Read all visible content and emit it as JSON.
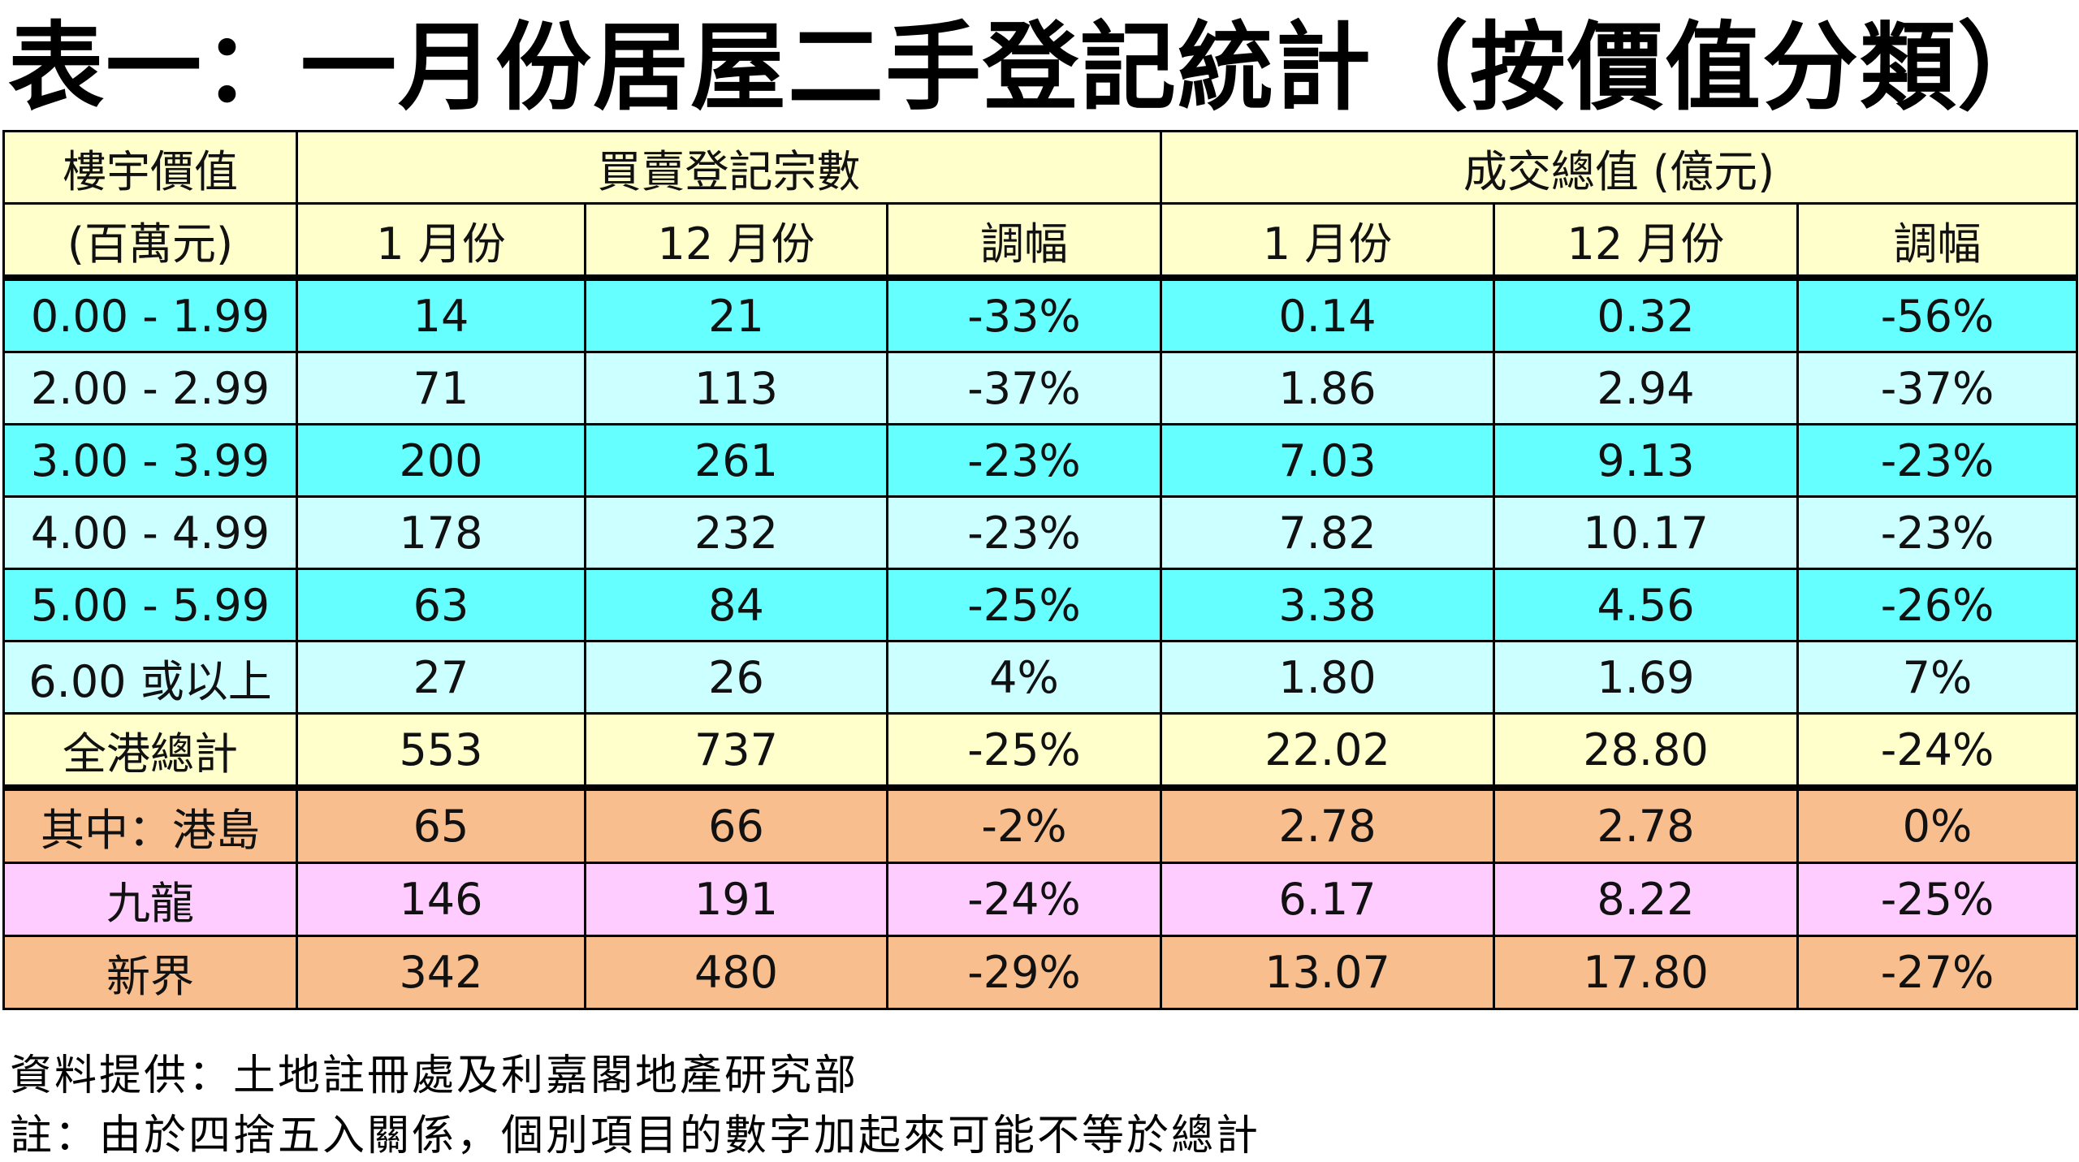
{
  "title": "表一：一月份居屋二手登記統計（按價值分類）",
  "colors": {
    "header_bg": "#ffffcc",
    "band_dark": "#66ffff",
    "band_light": "#ccffff",
    "total_bg": "#ffffcc",
    "region_orange": "#f8be8e",
    "region_pink": "#ffccff"
  },
  "header": {
    "row1": {
      "value_label": "樓宇價值",
      "registrations_label": "買賣登記宗數",
      "total_value_label": "成交總值 (億元)"
    },
    "row2": {
      "unit_label": "(百萬元)",
      "jan": "1 月份",
      "dec": "12 月份",
      "change": "調幅",
      "jan_v": "1 月份",
      "dec_v": "12 月份",
      "change_v": "調幅"
    }
  },
  "rows": [
    {
      "label": "0.00 - 1.99",
      "jan": "14",
      "dec": "21",
      "chg": "-33%",
      "jan_v": "0.14",
      "dec_v": "0.32",
      "chg_v": "-56%",
      "bg": "#66ffff"
    },
    {
      "label": "2.00 - 2.99",
      "jan": "71",
      "dec": "113",
      "chg": "-37%",
      "jan_v": "1.86",
      "dec_v": "2.94",
      "chg_v": "-37%",
      "bg": "#ccffff"
    },
    {
      "label": "3.00 - 3.99",
      "jan": "200",
      "dec": "261",
      "chg": "-23%",
      "jan_v": "7.03",
      "dec_v": "9.13",
      "chg_v": "-23%",
      "bg": "#66ffff"
    },
    {
      "label": "4.00 - 4.99",
      "jan": "178",
      "dec": "232",
      "chg": "-23%",
      "jan_v": "7.82",
      "dec_v": "10.17",
      "chg_v": "-23%",
      "bg": "#ccffff"
    },
    {
      "label": "5.00 - 5.99",
      "jan": "63",
      "dec": "84",
      "chg": "-25%",
      "jan_v": "3.38",
      "dec_v": "4.56",
      "chg_v": "-26%",
      "bg": "#66ffff"
    },
    {
      "label": "6.00 或以上",
      "jan": "27",
      "dec": "26",
      "chg": "4%",
      "jan_v": "1.80",
      "dec_v": "1.69",
      "chg_v": "7%",
      "bg": "#ccffff"
    }
  ],
  "total": {
    "label": "全港總計",
    "jan": "553",
    "dec": "737",
    "chg": "-25%",
    "jan_v": "22.02",
    "dec_v": "28.80",
    "chg_v": "-24%"
  },
  "regions": [
    {
      "label": "其中：港島",
      "jan": "65",
      "dec": "66",
      "chg": "-2%",
      "jan_v": "2.78",
      "dec_v": "2.78",
      "chg_v": "0%",
      "bg": "#f8be8e"
    },
    {
      "label": "九龍",
      "jan": "146",
      "dec": "191",
      "chg": "-24%",
      "jan_v": "6.17",
      "dec_v": "8.22",
      "chg_v": "-25%",
      "bg": "#ffccff"
    },
    {
      "label": "新界",
      "jan": "342",
      "dec": "480",
      "chg": "-29%",
      "jan_v": "13.07",
      "dec_v": "17.80",
      "chg_v": "-27%",
      "bg": "#f8be8e"
    }
  ],
  "footer": {
    "source": "資料提供：土地註冊處及利嘉閣地產研究部",
    "note": "註：由於四捨五入關係，個別項目的數字加起來可能不等於總計"
  }
}
